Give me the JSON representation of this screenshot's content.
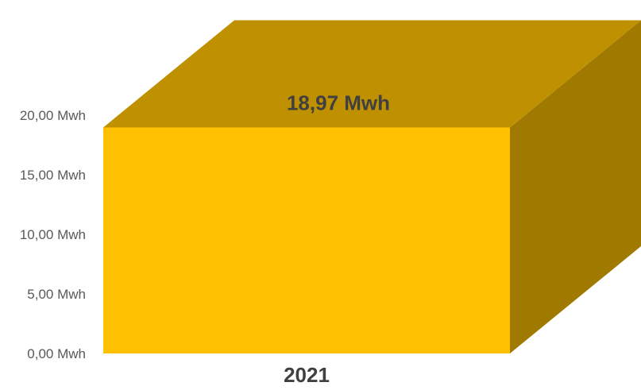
{
  "chart_data": {
    "type": "bar",
    "style": "3d-column",
    "categories": [
      "2021"
    ],
    "values": [
      18.97
    ],
    "data_labels": [
      "18,97 Mwh"
    ],
    "ylim": [
      0,
      20
    ],
    "yticks": [
      0,
      5,
      10,
      15,
      20
    ],
    "ytick_labels": [
      "0,00 Mwh",
      "5,00 Mwh",
      "10,00 Mwh",
      "15,00 Mwh",
      "20,00 Mwh"
    ],
    "title": "",
    "xlabel": "",
    "ylabel": "",
    "grid": false,
    "legend": "none",
    "colors": {
      "front": "#FFC000",
      "top": "#BF9000",
      "side": "#A07A00",
      "text": "#404040",
      "tick_text": "#595959"
    }
  }
}
